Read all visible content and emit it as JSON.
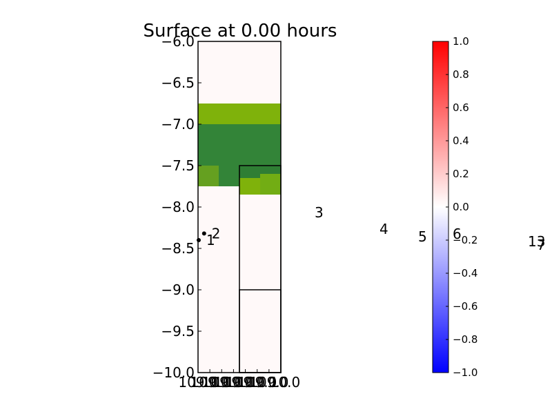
{
  "chart_data": [
    {
      "type": "heatmap",
      "title": "Surface at 0.00 hours",
      "xlabel": "",
      "ylabel": "",
      "xlim": [
        -109.0,
        -108.0
      ],
      "ylim": [
        -10.0,
        -6.0
      ],
      "y_ticks": [
        "−10.0",
        "−9.5",
        "−9.0",
        "−8.5",
        "−8.0",
        "−7.5",
        "−7.0",
        "−6.5",
        "−6.0"
      ],
      "x_ticks_overlapping_text": [
        "109.0",
        "109.0",
        "109.0",
        "109.0",
        "109.0",
        "109.0",
        "109.0",
        "108.0"
      ],
      "x_tick_endpoint_labels": [
        "109.0",
        "10.0"
      ],
      "background_color": "#fff9f9",
      "cells": [
        {
          "x0": -109.0,
          "x1": -108.0,
          "y0": -7.0,
          "y1": -6.75,
          "color": "#7fb20b"
        },
        {
          "x0": -109.0,
          "x1": -108.0,
          "y0": -7.5,
          "y1": -7.0,
          "color": "#338438"
        },
        {
          "x0": -109.0,
          "x1": -108.75,
          "y0": -7.75,
          "y1": -7.5,
          "color": "#65a020"
        },
        {
          "x0": -108.75,
          "x1": -108.5,
          "y0": -7.75,
          "y1": -7.5,
          "color": "#338438"
        },
        {
          "x0": -108.5,
          "x1": -108.0,
          "y0": -7.75,
          "y1": -7.5,
          "color": "#2f7e34"
        },
        {
          "x0": -108.5,
          "x1": -108.25,
          "y0": -7.85,
          "y1": -7.65,
          "color": "#7fb20b"
        },
        {
          "x0": -108.25,
          "x1": -108.0,
          "y0": -7.85,
          "y1": -7.6,
          "color": "#72ad14"
        }
      ],
      "boxes": [
        {
          "x0": -108.5,
          "x1": -108.0,
          "y0": -10.0,
          "y1": -7.5
        },
        {
          "x0": -108.5,
          "x1": -108.0,
          "y0": -10.0,
          "y1": -9.0
        }
      ],
      "points": [
        {
          "x": -109.0,
          "y": -8.4,
          "label": "1"
        },
        {
          "x": -108.96,
          "y": -8.32,
          "label": "2"
        }
      ],
      "station_labels": [
        "3",
        "4",
        "5",
        "6",
        "13",
        "7"
      ],
      "colorbar": {
        "min": -1.0,
        "max": 1.0,
        "ticks": [
          "1.0",
          "0.8",
          "0.6",
          "0.4",
          "0.2",
          "0.0",
          "−0.2",
          "−0.4",
          "−0.6",
          "−0.8",
          "−1.0"
        ],
        "colors": [
          "#0000ff",
          "#ffffff",
          "#ff0000"
        ]
      },
      "grid": false,
      "legend": "none"
    }
  ]
}
